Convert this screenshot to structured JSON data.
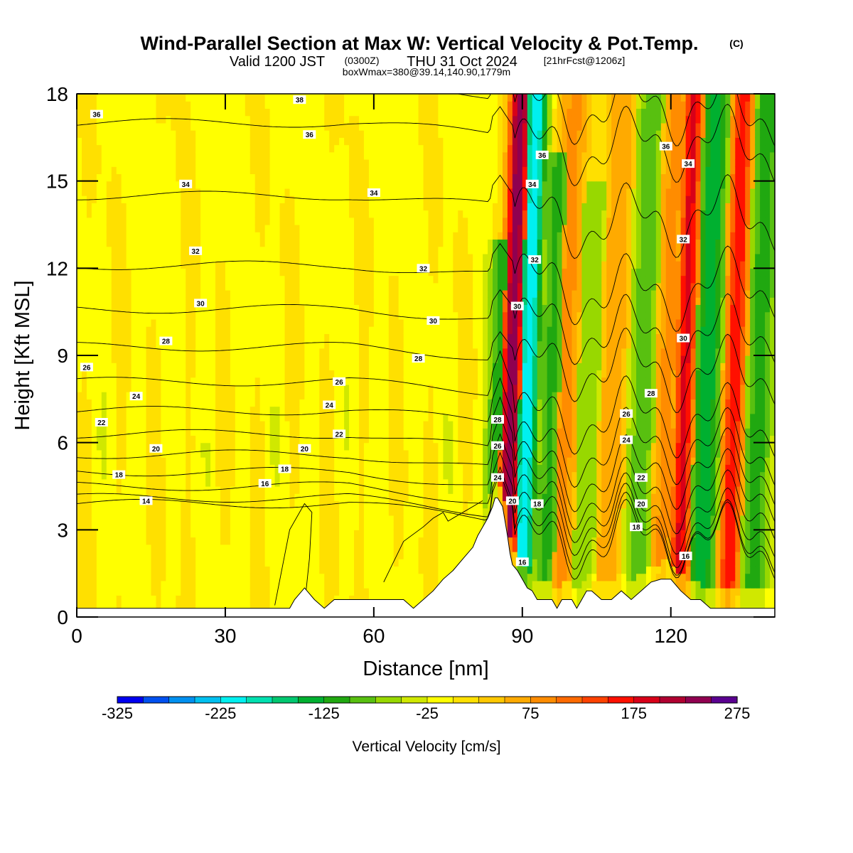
{
  "title": {
    "main": "Wind-Parallel Section at Max W: Vertical Velocity & Pot.Temp.",
    "copyright": "(C)",
    "valid_a": "Valid 1200 JST",
    "valid_utc": "(0300Z)",
    "valid_b": "THU 31 Oct 2024",
    "forecast": "[21hrFcst@1206z]",
    "box": "boxWmax=380@39.14,140.90,1779m"
  },
  "chart_data": {
    "type": "heatmap",
    "xlabel": "Distance [nm]",
    "ylabel": "Height [Kft MSL]",
    "xlim": [
      0,
      141
    ],
    "ylim": [
      0,
      18
    ],
    "x_ticks": [
      0,
      30,
      60,
      90,
      120
    ],
    "y_ticks": [
      0,
      3,
      6,
      9,
      12,
      15,
      18
    ],
    "colorbar": {
      "label": "Vertical Velocity [cm/s]",
      "min": -325,
      "max": 275,
      "step": 25,
      "tick_labels": [
        "-325",
        "-225",
        "-125",
        "-25",
        "75",
        "175",
        "275"
      ],
      "colors": [
        "#0000f0",
        "#0050f0",
        "#0090f0",
        "#00c0f0",
        "#00f0f0",
        "#00e0b0",
        "#00c870",
        "#00b030",
        "#20a810",
        "#58c010",
        "#98d800",
        "#d0e800",
        "#ffff00",
        "#ffe000",
        "#ffc800",
        "#ffaa00",
        "#ff8c00",
        "#ff6a00",
        "#ff4200",
        "#ff1000",
        "#d80018",
        "#b00030",
        "#900050",
        "#5a0090"
      ]
    },
    "background_value_cms": -5,
    "w_bands": [
      {
        "x": 87.5,
        "value": 250,
        "top": 18
      },
      {
        "x": 85.5,
        "value": -120,
        "top": 13
      },
      {
        "x": 90.8,
        "value": -220,
        "top": 18
      },
      {
        "x": 95.5,
        "value": -100,
        "top": 16
      },
      {
        "x": 98.5,
        "value": 90,
        "top": 18
      },
      {
        "x": 103.0,
        "value": -70,
        "top": 15
      },
      {
        "x": 108.0,
        "value": 80,
        "top": 18
      },
      {
        "x": 114.0,
        "value": -90,
        "top": 18
      },
      {
        "x": 119.0,
        "value": 90,
        "top": 18
      },
      {
        "x": 122.5,
        "value": 190,
        "top": 18
      },
      {
        "x": 127.0,
        "value": -140,
        "top": 18
      },
      {
        "x": 132.5,
        "value": 180,
        "top": 18
      },
      {
        "x": 137.5,
        "value": -110,
        "top": 18
      }
    ],
    "terrain": {
      "x": [
        0,
        43,
        44,
        46,
        48,
        50,
        52,
        54,
        58,
        62,
        66,
        68,
        70,
        72,
        74,
        76,
        78,
        80,
        81,
        82,
        83,
        84,
        84.5,
        85,
        86,
        87,
        87.5,
        88,
        89,
        90,
        91,
        92,
        93,
        94,
        95,
        96,
        97,
        98,
        99,
        100,
        101,
        102,
        103,
        104,
        106,
        108,
        110,
        112,
        114,
        116,
        118,
        120,
        122,
        124,
        126,
        128,
        130,
        132,
        134,
        136,
        138,
        141
      ],
      "z_kft": [
        0.3,
        0.3,
        0.6,
        1.0,
        0.6,
        0.3,
        0.6,
        0.6,
        0.6,
        0.6,
        0.6,
        0.3,
        0.6,
        0.9,
        1.3,
        1.6,
        2.0,
        2.4,
        2.8,
        3.1,
        3.4,
        3.8,
        4.1,
        4.1,
        3.8,
        2.8,
        2.2,
        1.8,
        1.6,
        1.3,
        1.0,
        0.9,
        0.6,
        0.6,
        0.6,
        0.6,
        0.3,
        0.6,
        0.6,
        0.6,
        0.3,
        0.6,
        0.9,
        0.9,
        0.6,
        0.6,
        0.9,
        0.6,
        0.9,
        1.2,
        1.3,
        1.3,
        0.9,
        0.6,
        0.6,
        0.3,
        0.3,
        0.3,
        0.3,
        0.3,
        0.3,
        0.3
      ]
    },
    "theta_contours": {
      "levels": [
        12,
        14,
        16,
        18,
        20,
        22,
        24,
        26,
        28,
        30,
        32,
        34,
        36,
        38
      ],
      "west_heights_kft": [
        3.9,
        4.1,
        4.5,
        5.0,
        5.6,
        6.3,
        7.1,
        8.1,
        9.3,
        10.6,
        12.1,
        14.5,
        17.0,
        18.3
      ],
      "labels": [
        {
          "text": "14",
          "x": 14,
          "y": 4.0
        },
        {
          "text": "16",
          "x": 38,
          "y": 4.6
        },
        {
          "text": "18",
          "x": 8.5,
          "y": 4.9
        },
        {
          "text": "18",
          "x": 42,
          "y": 5.1
        },
        {
          "text": "20",
          "x": 16,
          "y": 5.8
        },
        {
          "text": "20",
          "x": 46,
          "y": 5.8
        },
        {
          "text": "22",
          "x": 5,
          "y": 6.7
        },
        {
          "text": "22",
          "x": 53,
          "y": 6.3
        },
        {
          "text": "24",
          "x": 12,
          "y": 7.6
        },
        {
          "text": "24",
          "x": 51,
          "y": 7.3
        },
        {
          "text": "26",
          "x": 2,
          "y": 8.6
        },
        {
          "text": "26",
          "x": 53,
          "y": 8.1
        },
        {
          "text": "28",
          "x": 18,
          "y": 9.5
        },
        {
          "text": "28",
          "x": 69,
          "y": 8.9
        },
        {
          "text": "30",
          "x": 25,
          "y": 10.8
        },
        {
          "text": "30",
          "x": 72,
          "y": 10.2
        },
        {
          "text": "32",
          "x": 24,
          "y": 12.6
        },
        {
          "text": "32",
          "x": 70,
          "y": 12.0
        },
        {
          "text": "34",
          "x": 22,
          "y": 14.9
        },
        {
          "text": "34",
          "x": 60,
          "y": 14.6
        },
        {
          "text": "36",
          "x": 4,
          "y": 17.3
        },
        {
          "text": "36",
          "x": 47,
          "y": 16.6
        },
        {
          "text": "38",
          "x": 45,
          "y": 17.8
        },
        {
          "text": "28",
          "x": 85,
          "y": 6.8
        },
        {
          "text": "26",
          "x": 85,
          "y": 5.9
        },
        {
          "text": "24",
          "x": 85,
          "y": 4.8
        },
        {
          "text": "20",
          "x": 88,
          "y": 4.0
        },
        {
          "text": "18",
          "x": 93,
          "y": 3.9
        },
        {
          "text": "16",
          "x": 90,
          "y": 1.9
        },
        {
          "text": "30",
          "x": 89,
          "y": 10.7
        },
        {
          "text": "32",
          "x": 92.5,
          "y": 12.3
        },
        {
          "text": "34",
          "x": 92,
          "y": 14.9
        },
        {
          "text": "36",
          "x": 94,
          "y": 15.9
        },
        {
          "text": "28",
          "x": 116,
          "y": 7.7
        },
        {
          "text": "26",
          "x": 111,
          "y": 7.0
        },
        {
          "text": "24",
          "x": 111,
          "y": 6.1
        },
        {
          "text": "22",
          "x": 114,
          "y": 4.8
        },
        {
          "text": "20",
          "x": 114,
          "y": 3.9
        },
        {
          "text": "18",
          "x": 113,
          "y": 3.1
        },
        {
          "text": "16",
          "x": 123,
          "y": 2.1
        },
        {
          "text": "30",
          "x": 122.5,
          "y": 9.6
        },
        {
          "text": "32",
          "x": 122.5,
          "y": 13.0
        },
        {
          "text": "34",
          "x": 123.5,
          "y": 15.6
        },
        {
          "text": "36",
          "x": 119,
          "y": 16.2
        }
      ]
    },
    "w_contours_kft": [
      {
        "x": [
          40,
          43,
          46,
          47.5,
          47,
          46
        ],
        "y": [
          0.4,
          3.0,
          3.9,
          3.6,
          2.0,
          0.4
        ]
      },
      {
        "x": [
          62,
          66,
          70,
          72,
          74,
          75,
          78,
          80,
          82
        ],
        "y": [
          1.2,
          2.6,
          3.1,
          3.4,
          3.6,
          3.3,
          3.6,
          3.8,
          4.0
        ]
      }
    ]
  }
}
